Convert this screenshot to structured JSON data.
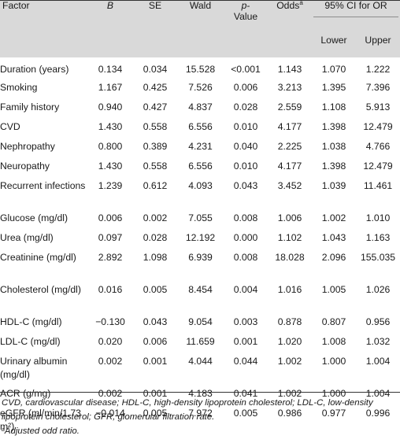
{
  "headers": {
    "factor": "Factor",
    "b": "B",
    "se": "SE",
    "wald": "Wald",
    "p_italic": "p",
    "p_rest": "-",
    "p_line2": "Value",
    "odds": "Odds",
    "odds_sup": "a",
    "ci": "95% CI for OR",
    "lower": "Lower",
    "upper": "Upper"
  },
  "rows": [
    {
      "factor": "Duration (years)",
      "b": "0.134",
      "se": "0.034",
      "wald": "15.528",
      "p": "<0.001",
      "odds": "1.143",
      "lower": "1.070",
      "upper": "1.222"
    },
    {
      "factor": "Smoking",
      "b": "1.167",
      "se": "0.425",
      "wald": "7.526",
      "p": "0.006",
      "odds": "3.213",
      "lower": "1.395",
      "upper": "7.396"
    },
    {
      "factor": "Family history",
      "b": "0.940",
      "se": "0.427",
      "wald": "4.837",
      "p": "0.028",
      "odds": "2.559",
      "lower": "1.108",
      "upper": "5.913"
    },
    {
      "factor": "CVD",
      "b": "1.430",
      "se": "0.558",
      "wald": "6.556",
      "p": "0.010",
      "odds": "4.177",
      "lower": "1.398",
      "upper": "12.479"
    },
    {
      "factor": "Nephropathy",
      "b": "0.800",
      "se": "0.389",
      "wald": "4.231",
      "p": "0.040",
      "odds": "2.225",
      "lower": "1.038",
      "upper": "4.766"
    },
    {
      "factor": "Neuropathy",
      "b": "1.430",
      "se": "0.558",
      "wald": "6.556",
      "p": "0.010",
      "odds": "4.177",
      "lower": "1.398",
      "upper": "12.479"
    },
    {
      "factor": "Recurrent infections",
      "b": "1.239",
      "se": "0.612",
      "wald": "4.093",
      "p": "0.043",
      "odds": "3.452",
      "lower": "1.039",
      "upper": "11.461"
    },
    {
      "factor": "Glucose (mg/dl)",
      "b": "0.006",
      "se": "0.002",
      "wald": "7.055",
      "p": "0.008",
      "odds": "1.006",
      "lower": "1.002",
      "upper": "1.010"
    },
    {
      "factor": "Urea (mg/dl)",
      "b": "0.097",
      "se": "0.028",
      "wald": "12.192",
      "p": "0.000",
      "odds": "1.102",
      "lower": "1.043",
      "upper": "1.163"
    },
    {
      "factor": "Creatinine (mg/dl)",
      "b": "2.892",
      "se": "1.098",
      "wald": "6.939",
      "p": "0.008",
      "odds": "18.028",
      "lower": "2.096",
      "upper": "155.035"
    },
    {
      "factor": "Cholesterol (mg/dl)",
      "b": "0.016",
      "se": "0.005",
      "wald": "8.454",
      "p": "0.004",
      "odds": "1.016",
      "lower": "1.005",
      "upper": "1.026"
    },
    {
      "factor": "HDL-C (mg/dl)",
      "b": "−0.130",
      "se": "0.043",
      "wald": "9.054",
      "p": "0.003",
      "odds": "0.878",
      "lower": "0.807",
      "upper": "0.956"
    },
    {
      "factor": "LDL-C (mg/dl)",
      "b": "0.020",
      "se": "0.006",
      "wald": "11.659",
      "p": "0.001",
      "odds": "1.020",
      "lower": "1.008",
      "upper": "1.032"
    },
    {
      "factor": "Urinary albumin (mg/dl)",
      "b": "0.002",
      "se": "0.001",
      "wald": "4.044",
      "p": "0.044",
      "odds": "1.002",
      "lower": "1.000",
      "upper": "1.004"
    },
    {
      "factor": "ACR (g/mg)",
      "b": "0.002",
      "se": "0.001",
      "wald": "4.183",
      "p": "0.041",
      "odds": "1.002",
      "lower": "1.000",
      "upper": "1.004"
    },
    {
      "factor": "eGFR (ml/min/1.73 m²)",
      "b": "−0.014",
      "se": "0.005",
      "wald": "7.972",
      "p": "0.005",
      "odds": "0.986",
      "lower": "0.977",
      "upper": "0.996"
    }
  ],
  "notes": {
    "abbreviations": "CVD, cardiovascular disease; HDL-C, high-density lipoprotein cholesterol; LDL-C, low-density lipoprotein cholesterol; GFR, glomerular filtration rate.",
    "footnote_mark": "a",
    "footnote": "Adjusted odd ratio."
  }
}
